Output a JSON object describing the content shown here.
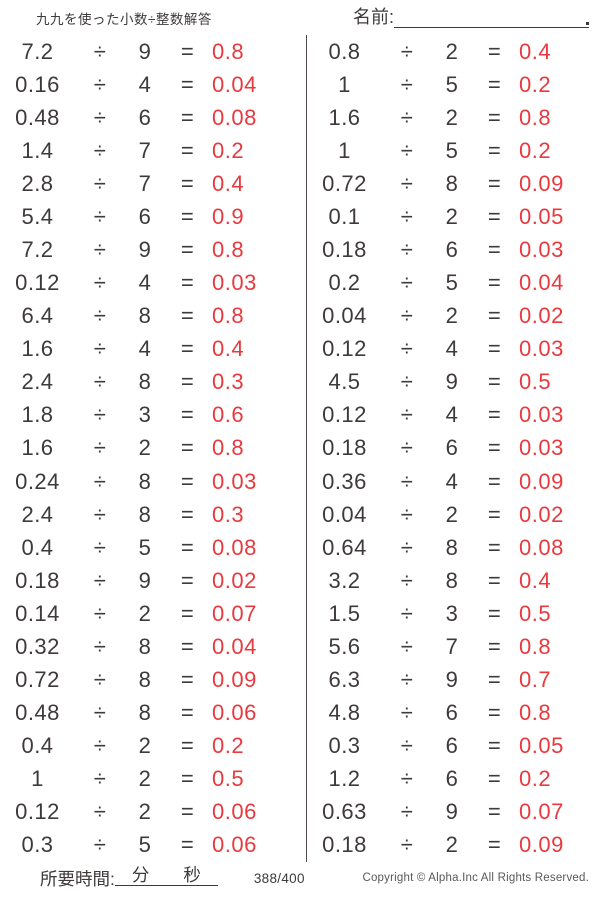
{
  "header": {
    "title": "九九を使った小数÷整数解答",
    "name_label": "名前:"
  },
  "operators": {
    "divide": "÷",
    "equals": "="
  },
  "problems": {
    "left": [
      {
        "dividend": "7.2",
        "divisor": "9",
        "answer": "0.8"
      },
      {
        "dividend": "0.16",
        "divisor": "4",
        "answer": "0.04"
      },
      {
        "dividend": "0.48",
        "divisor": "6",
        "answer": "0.08"
      },
      {
        "dividend": "1.4",
        "divisor": "7",
        "answer": "0.2"
      },
      {
        "dividend": "2.8",
        "divisor": "7",
        "answer": "0.4"
      },
      {
        "dividend": "5.4",
        "divisor": "6",
        "answer": "0.9"
      },
      {
        "dividend": "7.2",
        "divisor": "9",
        "answer": "0.8"
      },
      {
        "dividend": "0.12",
        "divisor": "4",
        "answer": "0.03"
      },
      {
        "dividend": "6.4",
        "divisor": "8",
        "answer": "0.8"
      },
      {
        "dividend": "1.6",
        "divisor": "4",
        "answer": "0.4"
      },
      {
        "dividend": "2.4",
        "divisor": "8",
        "answer": "0.3"
      },
      {
        "dividend": "1.8",
        "divisor": "3",
        "answer": "0.6"
      },
      {
        "dividend": "1.6",
        "divisor": "2",
        "answer": "0.8"
      },
      {
        "dividend": "0.24",
        "divisor": "8",
        "answer": "0.03"
      },
      {
        "dividend": "2.4",
        "divisor": "8",
        "answer": "0.3"
      },
      {
        "dividend": "0.4",
        "divisor": "5",
        "answer": "0.08"
      },
      {
        "dividend": "0.18",
        "divisor": "9",
        "answer": "0.02"
      },
      {
        "dividend": "0.14",
        "divisor": "2",
        "answer": "0.07"
      },
      {
        "dividend": "0.32",
        "divisor": "8",
        "answer": "0.04"
      },
      {
        "dividend": "0.72",
        "divisor": "8",
        "answer": "0.09"
      },
      {
        "dividend": "0.48",
        "divisor": "8",
        "answer": "0.06"
      },
      {
        "dividend": "0.4",
        "divisor": "2",
        "answer": "0.2"
      },
      {
        "dividend": "1",
        "divisor": "2",
        "answer": "0.5"
      },
      {
        "dividend": "0.12",
        "divisor": "2",
        "answer": "0.06"
      },
      {
        "dividend": "0.3",
        "divisor": "5",
        "answer": "0.06"
      }
    ],
    "right": [
      {
        "dividend": "0.8",
        "divisor": "2",
        "answer": "0.4"
      },
      {
        "dividend": "1",
        "divisor": "5",
        "answer": "0.2"
      },
      {
        "dividend": "1.6",
        "divisor": "2",
        "answer": "0.8"
      },
      {
        "dividend": "1",
        "divisor": "5",
        "answer": "0.2"
      },
      {
        "dividend": "0.72",
        "divisor": "8",
        "answer": "0.09"
      },
      {
        "dividend": "0.1",
        "divisor": "2",
        "answer": "0.05"
      },
      {
        "dividend": "0.18",
        "divisor": "6",
        "answer": "0.03"
      },
      {
        "dividend": "0.2",
        "divisor": "5",
        "answer": "0.04"
      },
      {
        "dividend": "0.04",
        "divisor": "2",
        "answer": "0.02"
      },
      {
        "dividend": "0.12",
        "divisor": "4",
        "answer": "0.03"
      },
      {
        "dividend": "4.5",
        "divisor": "9",
        "answer": "0.5"
      },
      {
        "dividend": "0.12",
        "divisor": "4",
        "answer": "0.03"
      },
      {
        "dividend": "0.18",
        "divisor": "6",
        "answer": "0.03"
      },
      {
        "dividend": "0.36",
        "divisor": "4",
        "answer": "0.09"
      },
      {
        "dividend": "0.04",
        "divisor": "2",
        "answer": "0.02"
      },
      {
        "dividend": "0.64",
        "divisor": "8",
        "answer": "0.08"
      },
      {
        "dividend": "3.2",
        "divisor": "8",
        "answer": "0.4"
      },
      {
        "dividend": "1.5",
        "divisor": "3",
        "answer": "0.5"
      },
      {
        "dividend": "5.6",
        "divisor": "7",
        "answer": "0.8"
      },
      {
        "dividend": "6.3",
        "divisor": "9",
        "answer": "0.7"
      },
      {
        "dividend": "4.8",
        "divisor": "6",
        "answer": "0.8"
      },
      {
        "dividend": "0.3",
        "divisor": "6",
        "answer": "0.05"
      },
      {
        "dividend": "1.2",
        "divisor": "6",
        "answer": "0.2"
      },
      {
        "dividend": "0.63",
        "divisor": "9",
        "answer": "0.07"
      },
      {
        "dividend": "0.18",
        "divisor": "2",
        "answer": "0.09"
      }
    ]
  },
  "footer": {
    "time_label": "所要時間:",
    "minutes_label": "分",
    "seconds_label": "秒",
    "page_indicator": "388/400",
    "copyright": "Copyright © Alpha.Inc All Rights Reserved."
  },
  "colors": {
    "answer_red": "#e83a3e",
    "text_dark": "#3e3a39"
  }
}
